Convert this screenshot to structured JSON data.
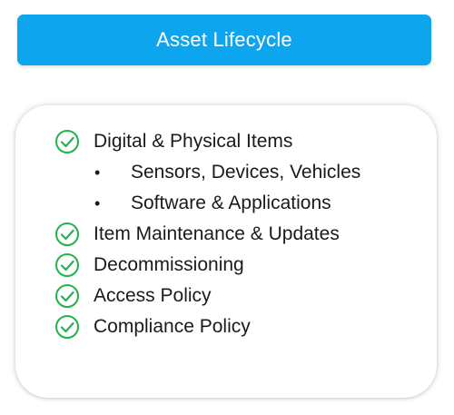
{
  "header": {
    "title": "Asset Lifecycle",
    "color": "#0ea5ef"
  },
  "checklist": {
    "check_color": "#22b24c",
    "items": [
      {
        "label": "Digital & Physical Items",
        "subitems": [
          "Sensors, Devices, Vehicles",
          "Software & Applications"
        ]
      },
      {
        "label": "Item Maintenance & Updates"
      },
      {
        "label": "Decommissioning"
      },
      {
        "label": "Access Policy"
      },
      {
        "label": "Compliance Policy"
      }
    ]
  }
}
